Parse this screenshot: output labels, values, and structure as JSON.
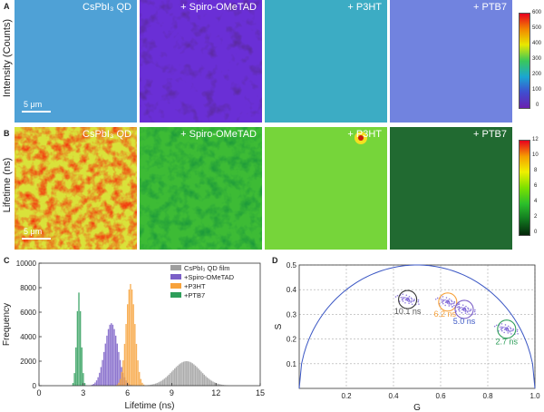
{
  "panels": {
    "a": {
      "letter": "A",
      "row_label": "Intensity (Counts)"
    },
    "b": {
      "letter": "B",
      "row_label": "Lifetime (ns)"
    },
    "c": {
      "letter": "C"
    },
    "d": {
      "letter": "D"
    }
  },
  "samples": [
    "CsPbI₃ QD",
    "+ Spiro-OMeTAD",
    "+ P3HT",
    "+ PTB7"
  ],
  "scalebar": "5 μm",
  "colorbar_intensity": {
    "ticks": [
      "600",
      "500",
      "400",
      "300",
      "200",
      "100",
      "0"
    ]
  },
  "colorbar_lifetime": {
    "ticks": [
      "12",
      "10",
      "8",
      "6",
      "4",
      "2",
      "0"
    ]
  },
  "colors": {
    "film": "#9e9e9e",
    "spiro": "#7b5fc7",
    "p3ht": "#f7a23b",
    "ptb7": "#2e9e5a",
    "arc": "#3b57c4"
  },
  "chart_data": [
    {
      "type": "bar",
      "panel": "C",
      "xlabel": "Lifetime (ns)",
      "ylabel": "Frequency",
      "xlim": [
        0,
        15
      ],
      "ylim": [
        0,
        10000
      ],
      "xticks": [
        "0",
        "3",
        "6",
        "9",
        "12",
        "15"
      ],
      "yticks": [
        "0",
        "2000",
        "4000",
        "6000",
        "8000",
        "10000"
      ],
      "legend": [
        "CsPbI₃ QD film",
        "+Spiro-OMeTAD",
        "+P3HT",
        "+PTB7"
      ],
      "legend_position": "top-right",
      "series": [
        {
          "name": "CsPbI₃ QD film",
          "center": 10.0,
          "peak": 2000,
          "sigma": 0.95
        },
        {
          "name": "+Spiro-OMeTAD",
          "center": 4.9,
          "peak": 5100,
          "sigma": 0.45
        },
        {
          "name": "+P3HT",
          "center": 6.2,
          "peak": 8300,
          "sigma": 0.3
        },
        {
          "name": "+PTB7",
          "center": 2.7,
          "peak": 7600,
          "sigma": 0.15
        }
      ]
    },
    {
      "type": "scatter",
      "panel": "D",
      "xlabel": "G",
      "ylabel": "S",
      "xlim": [
        0,
        1.0
      ],
      "ylim": [
        0,
        0.5
      ],
      "xticks": [
        "0.2",
        "0.4",
        "0.6",
        "0.8",
        "1.0"
      ],
      "yticks": [
        "0.1",
        "0.2",
        "0.3",
        "0.4",
        "0.5"
      ],
      "grid": true,
      "clusters": [
        {
          "label": "10.1 ns",
          "g": 0.46,
          "s": 0.36
        },
        {
          "label": "6.2 ns",
          "g": 0.63,
          "s": 0.35
        },
        {
          "label": "5.0 ns",
          "g": 0.7,
          "s": 0.32
        },
        {
          "label": "2.7 ns",
          "g": 0.88,
          "s": 0.24
        }
      ]
    }
  ]
}
